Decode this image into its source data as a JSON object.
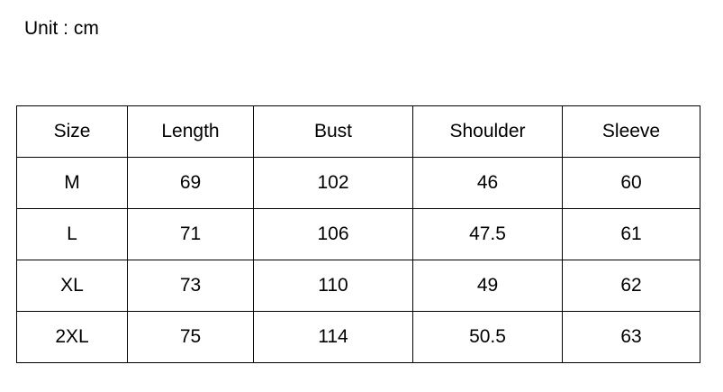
{
  "unit": "Unit : cm",
  "table": {
    "header": [
      "Size",
      "Length",
      "Bust",
      "Shoulder",
      "Sleeve"
    ],
    "rows": [
      [
        "M",
        69,
        102,
        46,
        60
      ],
      [
        "L",
        71,
        106,
        47.5,
        61
      ],
      [
        "XL",
        73,
        110,
        49,
        62
      ],
      [
        "2XL",
        75,
        114,
        50.5,
        63
      ]
    ]
  }
}
